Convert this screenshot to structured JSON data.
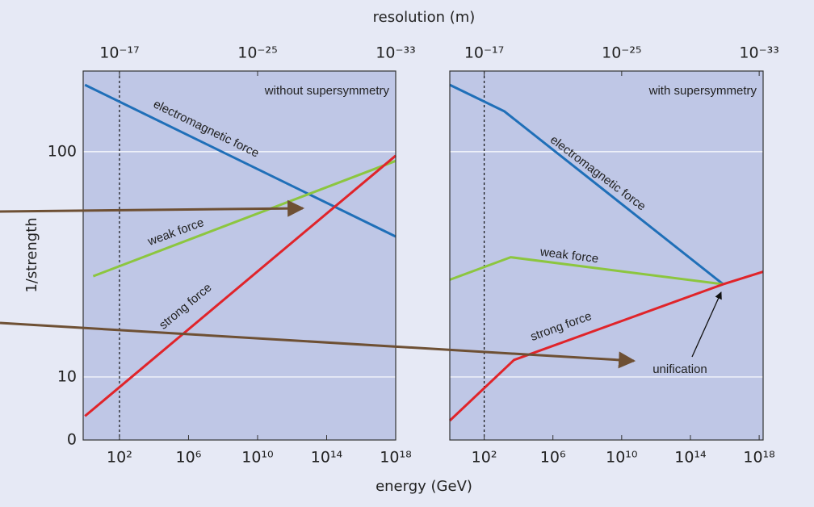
{
  "x_label": "energy (GeV)",
  "x2_label": "resolution (m)",
  "y_label": "1/strength",
  "chart_data": [
    {
      "type": "line",
      "log_x": true,
      "log_y": true,
      "grid": true,
      "note": "without supersymmetry",
      "y_origin_label": "0",
      "xlim": [
        0.79,
        1e+18
      ],
      "x2lim": [
        1.27e-15,
        1e-33
      ],
      "ylim": [
        5.25,
        228
      ],
      "xticks": [
        {
          "value": 100.0,
          "label": "10²"
        },
        {
          "value": 1000000.0,
          "label": "10⁶"
        },
        {
          "value": 10000000000.0,
          "label": "10¹⁰"
        },
        {
          "value": 100000000000000.0,
          "label": "10¹⁴"
        },
        {
          "value": 1e+18,
          "label": "10¹⁸"
        }
      ],
      "x2ticks": [
        {
          "value": 1e-17,
          "label": "10⁻¹⁷"
        },
        {
          "value": 1e-25,
          "label": "10⁻²⁵"
        },
        {
          "value": 1e-33,
          "label": "10⁻³³"
        }
      ],
      "yticks": [
        10,
        100
      ],
      "reference_x": 100,
      "series": [
        {
          "name": "electromagnetic force",
          "color": "#1f6fb8",
          "x": [
            1,
            1e+18
          ],
          "values": [
            198,
            42
          ]
        },
        {
          "name": "weak force",
          "color": "#8cc63f",
          "x": [
            3,
            1e+18
          ],
          "values": [
            28,
            91
          ]
        },
        {
          "name": "strong force",
          "color": "#e0242a",
          "x": [
            1,
            1e+18
          ],
          "values": [
            6.7,
            96
          ]
        }
      ]
    },
    {
      "type": "line",
      "log_x": true,
      "log_y": true,
      "grid": true,
      "note": "with supersymmetry",
      "annotation": "unification",
      "xlim": [
        1,
        1.7e+18
      ],
      "x2lim": [
        1e-15,
        5.9e-34
      ],
      "ylim": [
        5.25,
        228
      ],
      "xticks": [
        {
          "value": 100.0,
          "label": "10²"
        },
        {
          "value": 1000000.0,
          "label": "10⁶"
        },
        {
          "value": 10000000000.0,
          "label": "10¹⁰"
        },
        {
          "value": 100000000000000.0,
          "label": "10¹⁴"
        },
        {
          "value": 1e+18,
          "label": "10¹⁸"
        }
      ],
      "x2ticks": [
        {
          "value": 1e-17,
          "label": "10⁻¹⁷"
        },
        {
          "value": 1e-25,
          "label": "10⁻²⁵"
        },
        {
          "value": 1e-33,
          "label": "10⁻³³"
        }
      ],
      "yticks": [
        10,
        100
      ],
      "reference_x": 100,
      "series": [
        {
          "name": "electromagnetic force",
          "color": "#1f6fb8",
          "x": [
            1,
            1500,
            8000000000000000.0
          ],
          "values": [
            198,
            151,
            25.8
          ]
        },
        {
          "name": "weak force",
          "color": "#8cc63f",
          "x": [
            1,
            3500,
            8000000000000000.0
          ],
          "values": [
            27,
            34,
            25.8
          ]
        },
        {
          "name": "strong force",
          "color": "#e0242a",
          "x": [
            1,
            5500,
            8000000000000000.0,
            1.7e+18
          ],
          "values": [
            6.4,
            11.9,
            25.8,
            29.3
          ]
        }
      ]
    }
  ]
}
